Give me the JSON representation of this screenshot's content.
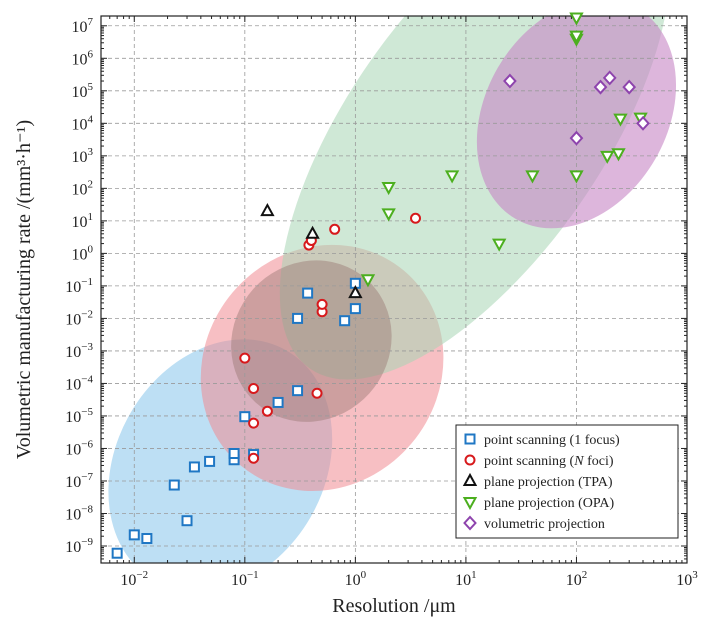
{
  "chart_data": {
    "type": "scatter",
    "title": "",
    "xlabel": "Resolution /μm",
    "ylabel": "Volumetric manufacturing rate /(mm³·h⁻¹)",
    "xscale": "log",
    "yscale": "log",
    "xlim": [
      0.005,
      1000
    ],
    "ylim": [
      3e-10,
      20000000.0
    ],
    "grid": true,
    "legend_position": "bottom-right",
    "x_ticks": [
      {
        "value": 0.01,
        "base": "10",
        "exp": "−2"
      },
      {
        "value": 0.1,
        "base": "10",
        "exp": "−1"
      },
      {
        "value": 1,
        "base": "10",
        "exp": "0"
      },
      {
        "value": 10,
        "base": "10",
        "exp": "1"
      },
      {
        "value": 100,
        "base": "10",
        "exp": "2"
      },
      {
        "value": 1000,
        "base": "10",
        "exp": "3"
      }
    ],
    "y_ticks": [
      {
        "value": 1e-09,
        "base": "10",
        "exp": "−9"
      },
      {
        "value": 1e-08,
        "base": "10",
        "exp": "−8"
      },
      {
        "value": 1e-07,
        "base": "10",
        "exp": "−7"
      },
      {
        "value": 1e-06,
        "base": "10",
        "exp": "−6"
      },
      {
        "value": 1e-05,
        "base": "10",
        "exp": "−5"
      },
      {
        "value": 0.0001,
        "base": "10",
        "exp": "−4"
      },
      {
        "value": 0.001,
        "base": "10",
        "exp": "−3"
      },
      {
        "value": 0.01,
        "base": "10",
        "exp": "−2"
      },
      {
        "value": 0.1,
        "base": "10",
        "exp": "−1"
      },
      {
        "value": 1,
        "base": "10",
        "exp": "0"
      },
      {
        "value": 10,
        "base": "10",
        "exp": "1"
      },
      {
        "value": 100,
        "base": "10",
        "exp": "2"
      },
      {
        "value": 1000,
        "base": "10",
        "exp": "3"
      },
      {
        "value": 10000,
        "base": "10",
        "exp": "4"
      },
      {
        "value": 100000,
        "base": "10",
        "exp": "5"
      },
      {
        "value": 1000000,
        "base": "10",
        "exp": "6"
      },
      {
        "value": 10000000,
        "base": "10",
        "exp": "7"
      }
    ],
    "regions": [
      {
        "name": "point-scanning-1-focus-region",
        "color": "#7cc0ea",
        "opacity": 0.5,
        "center": [
          0.06,
          3e-07
        ],
        "rx_decades": 1.2,
        "ry_decades": 3.2,
        "angle": -60
      },
      {
        "name": "point-scanning-n-foci-region",
        "color": "#f08a92",
        "opacity": 0.55,
        "center": [
          0.5,
          0.0003
        ],
        "rx_decades": 1.15,
        "ry_decades": 3.6,
        "angle": -50
      },
      {
        "name": "plane-projection-region",
        "color": "#a8d5b5",
        "opacity": 0.55,
        "center": [
          12,
          5000
        ],
        "rx_decades": 2.6,
        "ry_decades": 3.9,
        "angle": -55
      },
      {
        "name": "volumetric-projection-region",
        "color": "#c785c4",
        "opacity": 0.6,
        "center": [
          100,
          20000
        ],
        "rx_decades": 1.1,
        "ry_decades": 2.8,
        "angle": -60
      },
      {
        "name": "overlap-region",
        "color": "#9a7774",
        "opacity": 0.45,
        "center": [
          0.4,
          0.002
        ],
        "rx_decades": 0.75,
        "ry_decades": 2.4,
        "angle": -48
      }
    ],
    "series": [
      {
        "name": "point scanning (1 focus)",
        "marker": "square",
        "color": "#1f77c4",
        "points": [
          [
            0.007,
            6e-10
          ],
          [
            0.01,
            2.2e-09
          ],
          [
            0.013,
            1.7e-09
          ],
          [
            0.03,
            6e-09
          ],
          [
            0.023,
            7.5e-08
          ],
          [
            0.035,
            2.7e-07
          ],
          [
            0.048,
            4e-07
          ],
          [
            0.08,
            4.5e-07
          ],
          [
            0.08,
            7e-07
          ],
          [
            0.12,
            6.5e-07
          ],
          [
            0.1,
            9.5e-06
          ],
          [
            0.2,
            2.6e-05
          ],
          [
            0.3,
            6e-05
          ],
          [
            0.3,
            0.01
          ],
          [
            0.37,
            0.06
          ],
          [
            0.8,
            0.0085
          ],
          [
            1.0,
            0.02
          ],
          [
            1.0,
            0.12
          ]
        ]
      },
      {
        "name": "point scanning (N foci)",
        "marker": "circle",
        "color": "#d7191c",
        "points": [
          [
            0.1,
            0.0006
          ],
          [
            0.12,
            7e-05
          ],
          [
            0.12,
            6e-06
          ],
          [
            0.16,
            1.4e-05
          ],
          [
            0.12,
            5e-07
          ],
          [
            0.45,
            5e-05
          ],
          [
            0.5,
            0.016
          ],
          [
            0.5,
            0.027
          ],
          [
            0.38,
            1.8
          ],
          [
            0.4,
            2.5
          ],
          [
            0.65,
            5.5
          ],
          [
            3.5,
            12
          ]
        ]
      },
      {
        "name": "plane projection (TPA)",
        "marker": "triangle-up",
        "color": "#111111",
        "points": [
          [
            0.16,
            20
          ],
          [
            0.41,
            4
          ],
          [
            1.0,
            0.06
          ]
        ]
      },
      {
        "name": "plane projection (OPA)",
        "marker": "triangle-down",
        "color": "#4caf1f",
        "points": [
          [
            1.3,
            0.16
          ],
          [
            2.0,
            17
          ],
          [
            2.0,
            110
          ],
          [
            7.5,
            250
          ],
          [
            20,
            2
          ],
          [
            40,
            250
          ],
          [
            100,
            250
          ],
          [
            100,
            4000000.0
          ],
          [
            100,
            5000000.0
          ],
          [
            100,
            18000000.0
          ],
          [
            190,
            1000
          ],
          [
            240,
            1200
          ],
          [
            250,
            14000
          ],
          [
            380,
            15000
          ]
        ]
      },
      {
        "name": "volumetric projection",
        "marker": "diamond",
        "color": "#8e44ad",
        "points": [
          [
            25,
            200000.0
          ],
          [
            100,
            3500
          ],
          [
            165,
            130000.0
          ],
          [
            200,
            250000.0
          ],
          [
            300,
            130000.0
          ],
          [
            400,
            10000
          ]
        ]
      }
    ],
    "legend": [
      {
        "label": "point scanning (1 focus)",
        "marker": "square",
        "color": "#1f77c4"
      },
      {
        "label": "point scanning (",
        "label_italic": "N",
        "label_tail": " foci)",
        "marker": "circle",
        "color": "#d7191c"
      },
      {
        "label": "plane projection (TPA)",
        "marker": "triangle-up",
        "color": "#111111"
      },
      {
        "label": "plane projection (OPA)",
        "marker": "triangle-down",
        "color": "#4caf1f"
      },
      {
        "label": "volumetric projection",
        "marker": "diamond",
        "color": "#8e44ad"
      }
    ]
  }
}
